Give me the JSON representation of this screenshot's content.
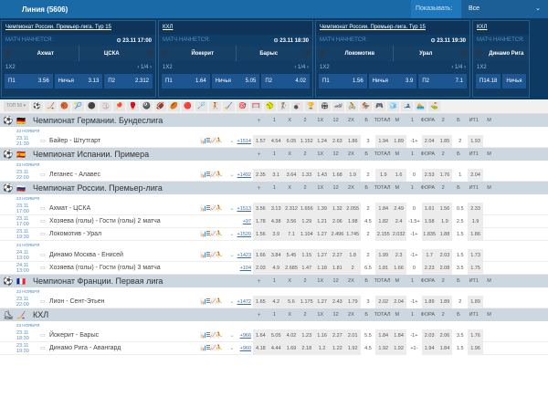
{
  "header": {
    "title": "Линия (5606)",
    "show_label": "Показывать:",
    "show_value": "Все"
  },
  "cards": [
    {
      "league": "Чемпионат России. Премьер-лига. Тур 15",
      "starts": "МАТЧ НАЧНЕТСЯ:",
      "time": "23.11 17:00",
      "home": "Ахмат",
      "away": "ЦСКА",
      "home_icon": "🛡",
      "away_icon": "🛡",
      "market": "1Х2",
      "pager": "‹ 1/4 ›",
      "odds": [
        [
          "П1",
          "3.56"
        ],
        [
          "Ничья",
          "3.13"
        ],
        [
          "П2",
          "2.312"
        ]
      ]
    },
    {
      "league": "КХЛ",
      "starts": "МАТЧ НАЧНЕТСЯ:",
      "time": "23.11 18:30",
      "home": "Йокерит",
      "away": "Барыс",
      "home_icon": "🛡",
      "away_icon": "🛡",
      "market": "1Х2",
      "pager": "‹ 1/4 ›",
      "odds": [
        [
          "П1",
          "1.64"
        ],
        [
          "Ничья",
          "5.05"
        ],
        [
          "П2",
          "4.02"
        ]
      ]
    },
    {
      "league": "Чемпионат России. Премьер-лига. Тур 15",
      "starts": "МАТЧ НАЧНЕТСЯ:",
      "time": "23.11 19:30",
      "home": "Локомотив",
      "away": "Урал",
      "home_icon": "🛡",
      "away_icon": "🛡",
      "market": "1Х2",
      "pager": "‹ 1/4 ›",
      "odds": [
        [
          "П1",
          "1.56"
        ],
        [
          "Ничья",
          "3.9"
        ],
        [
          "П2",
          "7.1"
        ]
      ]
    },
    {
      "league": "КХЛ",
      "starts": "МАТЧ НАЧНЕТСЯ:",
      "time": "",
      "home": "Динамо Рига",
      "away": "",
      "home_icon": "🛡",
      "away_icon": "",
      "market": "1Х2",
      "pager": "",
      "odds": [
        [
          "П1",
          "4.18"
        ],
        [
          "Ничья",
          ""
        ]
      ]
    }
  ],
  "filter": {
    "top_label": "ТОП 50 ▾",
    "sports": [
      "⚽",
      "🏒",
      "🏀",
      "🎾",
      "⚫",
      "🏐",
      "🏓",
      "🥊",
      "🎱",
      "🏈",
      "🏉",
      "🔴",
      "🏸",
      "🤾",
      "🏑",
      "🎯",
      "🥅",
      "🥎",
      "🏌",
      "🎳",
      "🏆",
      "🏟",
      "🏎",
      "🚴",
      "🏇",
      "🎮",
      "🧊",
      "🎿",
      "🏊",
      "⛳"
    ]
  },
  "columns": [
    "+",
    "1",
    "X",
    "2",
    "1X",
    "12",
    "2X",
    "Б",
    "ТОТАЛ",
    "М",
    "1",
    "ФОРА",
    "2",
    "Б",
    "ИТ1",
    "М"
  ],
  "leagues": [
    {
      "name": "Чемпионат Германии. Бундеслига",
      "flag": "🇩🇪",
      "sport": "⚽",
      "groups": [
        {
          "date": "23 НОЯБРЯ",
          "events": [
            {
              "date": "23.11",
              "time": "21:30",
              "name": "Байер - Штутгарт",
              "icons": true,
              "more": "+1514",
              "odds": [
                "1.57",
                "4.54",
                "6.05",
                "1.152",
                "1.24",
                "2.63",
                "1.86",
                "3",
                "1.94",
                "1.89",
                "-1+",
                "2.04",
                "1.85",
                "2",
                "1.93"
              ]
            }
          ]
        }
      ]
    },
    {
      "name": "Чемпионат Испании. Примера",
      "flag": "🇪🇸",
      "sport": "⚽",
      "groups": [
        {
          "date": "23 НОЯБРЯ",
          "events": [
            {
              "date": "23.11",
              "time": "22:00",
              "name": "Леганес - Алавес",
              "icons": true,
              "more": "+1492",
              "odds": [
                "2.35",
                "3.1",
                "3.64",
                "1.33",
                "1.43",
                "1.68",
                "1.9",
                "2",
                "1.9",
                "1.6",
                "0",
                "2.53",
                "1.76",
                "1",
                "2.04"
              ]
            }
          ]
        }
      ]
    },
    {
      "name": "Чемпионат России. Премьер-лига",
      "flag": "🇷🇺",
      "sport": "⚽",
      "groups": [
        {
          "date": "23 НОЯБРЯ",
          "events": [
            {
              "date": "23.11",
              "time": "17:00",
              "name": "Ахмат - ЦСКА",
              "icons": true,
              "more": "+1513",
              "odds": [
                "3.56",
                "3.13",
                "2.312",
                "1.656",
                "1.39",
                "1.32",
                "2.055",
                "2",
                "1.84",
                "2.49",
                "0",
                "1.61",
                "1.56",
                "0.5",
                "2.33"
              ]
            },
            {
              "date": "23.11",
              "time": "17:00",
              "name": "Хозяева (голы) - Гости (голы) 2 матча",
              "icons": false,
              "more": "+97",
              "odds": [
                "1.78",
                "4.38",
                "3.56",
                "1.29",
                "1.21",
                "2.06",
                "1.98",
                "4.5",
                "1.82",
                "2.4",
                "-1.5+",
                "1.58",
                "1.9",
                "2.5",
                "1.9"
              ]
            },
            {
              "date": "23.11",
              "time": "19:30",
              "name": "Локомотив - Урал",
              "icons": true,
              "more": "+1520",
              "odds": [
                "1.56",
                "3.9",
                "7.1",
                "1.104",
                "1.27",
                "2.496",
                "1.745",
                "2",
                "2.155",
                "2.032",
                "-1+",
                "1.835",
                "1.88",
                "1.5",
                "1.86"
              ]
            }
          ]
        },
        {
          "date": "24 НОЯБРЯ",
          "events": [
            {
              "date": "24.11",
              "time": "13:00",
              "name": "Динамо Москва - Енисей",
              "icons": true,
              "more": "+1423",
              "odds": [
                "1.66",
                "3.84",
                "5.45",
                "1.15",
                "1.27",
                "2.27",
                "1.8",
                "2",
                "1.99",
                "2.3",
                "-1+",
                "1.7",
                "2.03",
                "1.5",
                "1.73"
              ]
            },
            {
              "date": "24.11",
              "time": "13:00",
              "name": "Хозяева (голы) - Гости (голы) 3 матча",
              "icons": false,
              "more": "+104",
              "odds": [
                "2.03",
                "4.9",
                "2.685",
                "1.47",
                "1.18",
                "1.81",
                "2",
                "6.5",
                "1.81",
                "1.66",
                "0",
                "2.23",
                "2.08",
                "3.5",
                "1.75"
              ]
            }
          ]
        }
      ]
    },
    {
      "name": "Чемпионат Франции. Первая лига",
      "flag": "🇫🇷",
      "sport": "⚽",
      "groups": [
        {
          "date": "23 НОЯБРЯ",
          "events": [
            {
              "date": "23.11",
              "time": "22:00",
              "name": "Лион - Сент-Этьен",
              "icons": true,
              "more": "+1472",
              "odds": [
                "1.65",
                "4.2",
                "5.6",
                "1.175",
                "1.27",
                "2.43",
                "1.79",
                "3",
                "2.02",
                "2.04",
                "-1+",
                "1.89",
                "1.89",
                "2",
                "1.89"
              ]
            }
          ]
        }
      ]
    },
    {
      "name": "КХЛ",
      "flag": "🏒",
      "sport": "⛸",
      "groups": [
        {
          "date": "23 НОЯБРЯ",
          "events": [
            {
              "date": "23.11",
              "time": "18:30",
              "name": "Йокерит - Барыс",
              "icons": true,
              "more": "+966",
              "odds": [
                "1.64",
                "5.05",
                "4.02",
                "1.23",
                "1.16",
                "2.27",
                "2.01",
                "5.5",
                "1.84",
                "1.84",
                "-1+",
                "2.03",
                "2.06",
                "3.5",
                "1.76"
              ]
            },
            {
              "date": "23.11",
              "time": "19:30",
              "name": "Динамо Рига - Авангард",
              "icons": true,
              "more": "+960",
              "odds": [
                "4.18",
                "4.44",
                "1.69",
                "2.18",
                "1.2",
                "1.22",
                "1.92",
                "4.5",
                "1.92",
                "1.92",
                "+1-",
                "1.94",
                "1.84",
                "1.5",
                "1.96"
              ]
            }
          ]
        }
      ]
    }
  ],
  "row_icons": "📊☰📈⛹"
}
